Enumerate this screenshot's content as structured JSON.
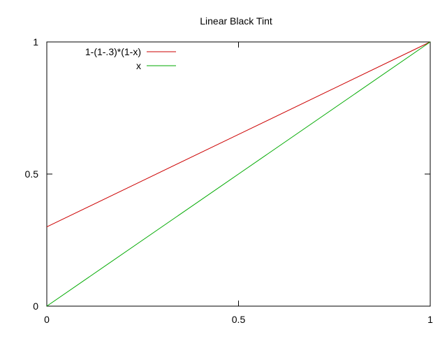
{
  "chart_data": {
    "type": "line",
    "title": "Linear Black Tint",
    "xlabel": "",
    "ylabel": "",
    "xlim": [
      0,
      1
    ],
    "ylim": [
      0,
      1
    ],
    "x_ticks": [
      {
        "value": 0,
        "label": "0"
      },
      {
        "value": 0.5,
        "label": "0.5"
      },
      {
        "value": 1,
        "label": "1"
      }
    ],
    "y_ticks": [
      {
        "value": 0,
        "label": "0"
      },
      {
        "value": 0.5,
        "label": "0.5"
      },
      {
        "value": 1,
        "label": "1"
      }
    ],
    "grid": false,
    "legend_position": "top-left",
    "series": [
      {
        "name": "1-(1-.3)*(1-x)",
        "color": "#cc0000",
        "x": [
          0,
          0.25,
          0.5,
          0.75,
          1
        ],
        "y": [
          0.3,
          0.475,
          0.65,
          0.825,
          1
        ]
      },
      {
        "name": "x",
        "color": "#00aa00",
        "x": [
          0,
          0.25,
          0.5,
          0.75,
          1
        ],
        "y": [
          0,
          0.25,
          0.5,
          0.75,
          1
        ]
      }
    ]
  }
}
